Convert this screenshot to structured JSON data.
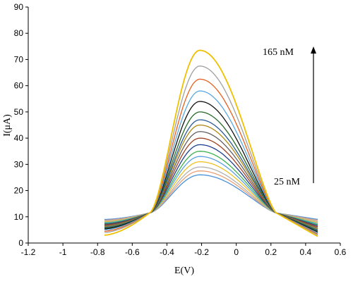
{
  "chart_data": {
    "type": "line",
    "xlabel": "E(V)",
    "ylabel": "I(μA)",
    "xlim": [
      -1.2,
      0.6
    ],
    "ylim": [
      0,
      90
    ],
    "xticks": [
      "-1.2",
      "-1",
      "-0.8",
      "-0.6",
      "-0.4",
      "-0.2",
      "0",
      "0.2",
      "0.4",
      "0.6"
    ],
    "yticks": [
      "0",
      "10",
      "20",
      "30",
      "40",
      "50",
      "60",
      "70",
      "80",
      "90"
    ],
    "grid": false,
    "legend": "none",
    "annotations": {
      "top_label": "165 nM",
      "bottom_label": "25 nM",
      "arrow": "upward"
    },
    "x_range": [
      -0.76,
      0.47
    ],
    "peak_potential": -0.21,
    "crossover_points": [
      -0.5,
      0.23
    ],
    "series": [
      {
        "start": 9.0,
        "peak": 26.0,
        "end": 9.0,
        "color": "#4a90d9"
      },
      {
        "start": 8.7,
        "peak": 27.5,
        "end": 8.6,
        "color": "#e8a07a"
      },
      {
        "start": 8.4,
        "peak": 29.0,
        "end": 8.2,
        "color": "#b0b0b0"
      },
      {
        "start": 8.1,
        "peak": 31.0,
        "end": 7.8,
        "color": "#f0c020"
      },
      {
        "start": 7.8,
        "peak": 33.0,
        "end": 7.4,
        "color": "#5aa0e0"
      },
      {
        "start": 7.5,
        "peak": 35.0,
        "end": 7.0,
        "color": "#3cb050"
      },
      {
        "start": 7.2,
        "peak": 37.5,
        "end": 6.6,
        "color": "#1f3f8f"
      },
      {
        "start": 6.9,
        "peak": 40.0,
        "end": 6.2,
        "color": "#a04020"
      },
      {
        "start": 6.6,
        "peak": 42.5,
        "end": 5.8,
        "color": "#606060"
      },
      {
        "start": 6.3,
        "peak": 45.0,
        "end": 5.4,
        "color": "#b08a10"
      },
      {
        "start": 6.0,
        "peak": 47.0,
        "end": 5.0,
        "color": "#2c5a9a"
      },
      {
        "start": 5.7,
        "peak": 50.0,
        "end": 4.6,
        "color": "#2a6a2a"
      },
      {
        "start": 5.4,
        "peak": 54.0,
        "end": 4.2,
        "color": "#111111"
      },
      {
        "start": 5.0,
        "peak": 58.0,
        "end": 3.8,
        "color": "#5aa8e0"
      },
      {
        "start": 4.5,
        "peak": 62.5,
        "end": 3.4,
        "color": "#e86020"
      },
      {
        "start": 4.0,
        "peak": 67.5,
        "end": 3.0,
        "color": "#a0a0a0"
      },
      {
        "start": 3.0,
        "peak": 73.5,
        "end": 2.5,
        "color": "#f0c000"
      }
    ]
  }
}
